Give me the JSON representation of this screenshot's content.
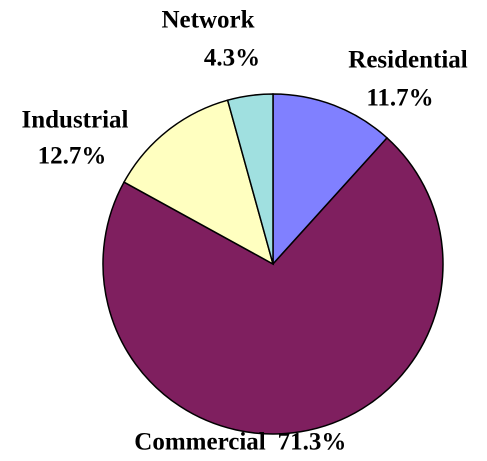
{
  "chart_data": {
    "type": "pie",
    "categories": [
      "Residential",
      "Commercial",
      "Industrial",
      "Network"
    ],
    "values": [
      11.7,
      71.3,
      12.7,
      4.3
    ],
    "value_labels": [
      "11.7%",
      "71.3%",
      "12.7%",
      "4.3%"
    ],
    "colors": [
      "#8080ff",
      "#7f1f5f",
      "#ffffc0",
      "#a0e0e0"
    ]
  }
}
